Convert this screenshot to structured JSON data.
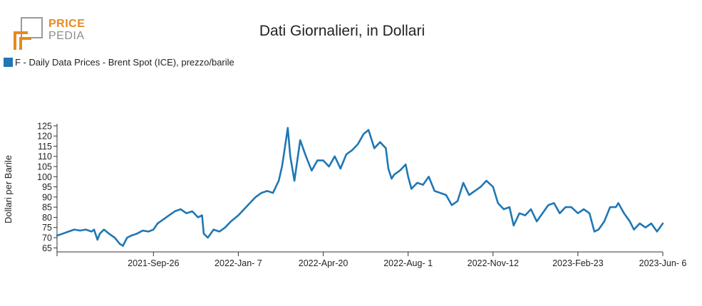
{
  "logo": {
    "word_top": "PRICE",
    "word_bottom": "PEDIA",
    "colors": {
      "orange": "#e8891d",
      "gray": "#9a9a9a"
    }
  },
  "chart_data": {
    "type": "line",
    "title": "Dati Giornalieri, in Dollari",
    "xlabel": "",
    "ylabel": "Dollari per Barile",
    "ylim": [
      63,
      126
    ],
    "yticks": [
      65,
      70,
      75,
      80,
      85,
      90,
      95,
      100,
      105,
      110,
      115,
      120,
      125
    ],
    "xlim": [
      "2021-06-01",
      "2023-06-06"
    ],
    "xticks": [
      {
        "date": "2021-06-01",
        "label": ""
      },
      {
        "date": "2021-09-26",
        "label": "2021-Sep-26"
      },
      {
        "date": "2022-01-07",
        "label": "2022-Jan- 7"
      },
      {
        "date": "2022-04-20",
        "label": "2022-Apr-20"
      },
      {
        "date": "2022-08-01",
        "label": "2022-Aug- 1"
      },
      {
        "date": "2022-11-12",
        "label": "2022-Nov-12"
      },
      {
        "date": "2023-02-23",
        "label": "2023-Feb-23"
      },
      {
        "date": "2023-06-06",
        "label": "2023-Jun- 6"
      }
    ],
    "grid": false,
    "legend_position": "top-left",
    "series": [
      {
        "name": "F - Daily Data Prices - Brent Spot (ICE), prezzo/barile",
        "color": "#1f77b4",
        "points": [
          [
            "2021-06-01",
            71
          ],
          [
            "2021-06-08",
            72
          ],
          [
            "2021-06-15",
            73
          ],
          [
            "2021-06-22",
            74
          ],
          [
            "2021-06-29",
            73.5
          ],
          [
            "2021-07-06",
            74
          ],
          [
            "2021-07-13",
            73
          ],
          [
            "2021-07-16",
            74
          ],
          [
            "2021-07-20",
            69
          ],
          [
            "2021-07-23",
            72
          ],
          [
            "2021-07-28",
            74
          ],
          [
            "2021-08-03",
            72
          ],
          [
            "2021-08-10",
            70
          ],
          [
            "2021-08-16",
            67
          ],
          [
            "2021-08-20",
            66
          ],
          [
            "2021-08-25",
            70
          ],
          [
            "2021-08-30",
            71
          ],
          [
            "2021-09-06",
            72
          ],
          [
            "2021-09-13",
            73.5
          ],
          [
            "2021-09-20",
            73
          ],
          [
            "2021-09-26",
            74
          ],
          [
            "2021-10-01",
            77
          ],
          [
            "2021-10-08",
            79
          ],
          [
            "2021-10-15",
            81
          ],
          [
            "2021-10-22",
            83
          ],
          [
            "2021-10-29",
            84
          ],
          [
            "2021-11-05",
            82
          ],
          [
            "2021-11-12",
            83
          ],
          [
            "2021-11-19",
            80
          ],
          [
            "2021-11-24",
            81
          ],
          [
            "2021-11-26",
            72
          ],
          [
            "2021-12-01",
            70
          ],
          [
            "2021-12-08",
            74
          ],
          [
            "2021-12-15",
            73
          ],
          [
            "2021-12-22",
            75
          ],
          [
            "2021-12-29",
            78
          ],
          [
            "2022-01-07",
            81
          ],
          [
            "2022-01-14",
            84
          ],
          [
            "2022-01-21",
            87
          ],
          [
            "2022-01-28",
            90
          ],
          [
            "2022-02-04",
            92
          ],
          [
            "2022-02-11",
            93
          ],
          [
            "2022-02-18",
            92
          ],
          [
            "2022-02-25",
            98
          ],
          [
            "2022-03-01",
            105
          ],
          [
            "2022-03-04",
            113
          ],
          [
            "2022-03-08",
            124
          ],
          [
            "2022-03-11",
            110
          ],
          [
            "2022-03-16",
            98
          ],
          [
            "2022-03-23",
            118
          ],
          [
            "2022-03-30",
            110
          ],
          [
            "2022-04-06",
            103
          ],
          [
            "2022-04-13",
            108
          ],
          [
            "2022-04-20",
            108
          ],
          [
            "2022-04-27",
            105
          ],
          [
            "2022-05-04",
            110
          ],
          [
            "2022-05-11",
            104
          ],
          [
            "2022-05-18",
            111
          ],
          [
            "2022-05-25",
            113
          ],
          [
            "2022-06-01",
            116
          ],
          [
            "2022-06-08",
            121
          ],
          [
            "2022-06-14",
            123
          ],
          [
            "2022-06-21",
            114
          ],
          [
            "2022-06-28",
            117
          ],
          [
            "2022-07-05",
            114
          ],
          [
            "2022-07-08",
            104
          ],
          [
            "2022-07-12",
            99
          ],
          [
            "2022-07-15",
            101
          ],
          [
            "2022-07-22",
            103
          ],
          [
            "2022-07-29",
            106
          ],
          [
            "2022-08-01",
            100
          ],
          [
            "2022-08-05",
            94
          ],
          [
            "2022-08-12",
            97
          ],
          [
            "2022-08-19",
            96
          ],
          [
            "2022-08-26",
            100
          ],
          [
            "2022-09-02",
            93
          ],
          [
            "2022-09-09",
            92
          ],
          [
            "2022-09-16",
            91
          ],
          [
            "2022-09-23",
            86
          ],
          [
            "2022-09-30",
            88
          ],
          [
            "2022-10-07",
            97
          ],
          [
            "2022-10-14",
            91
          ],
          [
            "2022-10-21",
            93
          ],
          [
            "2022-10-28",
            95
          ],
          [
            "2022-11-04",
            98
          ],
          [
            "2022-11-12",
            95
          ],
          [
            "2022-11-18",
            87
          ],
          [
            "2022-11-25",
            84
          ],
          [
            "2022-12-02",
            85
          ],
          [
            "2022-12-07",
            76
          ],
          [
            "2022-12-14",
            82
          ],
          [
            "2022-12-21",
            81
          ],
          [
            "2022-12-28",
            84
          ],
          [
            "2023-01-04",
            78
          ],
          [
            "2023-01-11",
            82
          ],
          [
            "2023-01-18",
            86
          ],
          [
            "2023-01-25",
            87
          ],
          [
            "2023-02-01",
            82
          ],
          [
            "2023-02-08",
            85
          ],
          [
            "2023-02-15",
            85
          ],
          [
            "2023-02-23",
            82
          ],
          [
            "2023-03-02",
            84
          ],
          [
            "2023-03-09",
            82
          ],
          [
            "2023-03-15",
            73
          ],
          [
            "2023-03-20",
            74
          ],
          [
            "2023-03-27",
            78
          ],
          [
            "2023-04-03",
            85
          ],
          [
            "2023-04-10",
            85
          ],
          [
            "2023-04-13",
            87
          ],
          [
            "2023-04-20",
            82
          ],
          [
            "2023-04-27",
            78
          ],
          [
            "2023-05-02",
            74
          ],
          [
            "2023-05-09",
            77
          ],
          [
            "2023-05-16",
            75
          ],
          [
            "2023-05-23",
            77
          ],
          [
            "2023-05-30",
            73
          ],
          [
            "2023-06-06",
            77
          ]
        ]
      }
    ]
  }
}
